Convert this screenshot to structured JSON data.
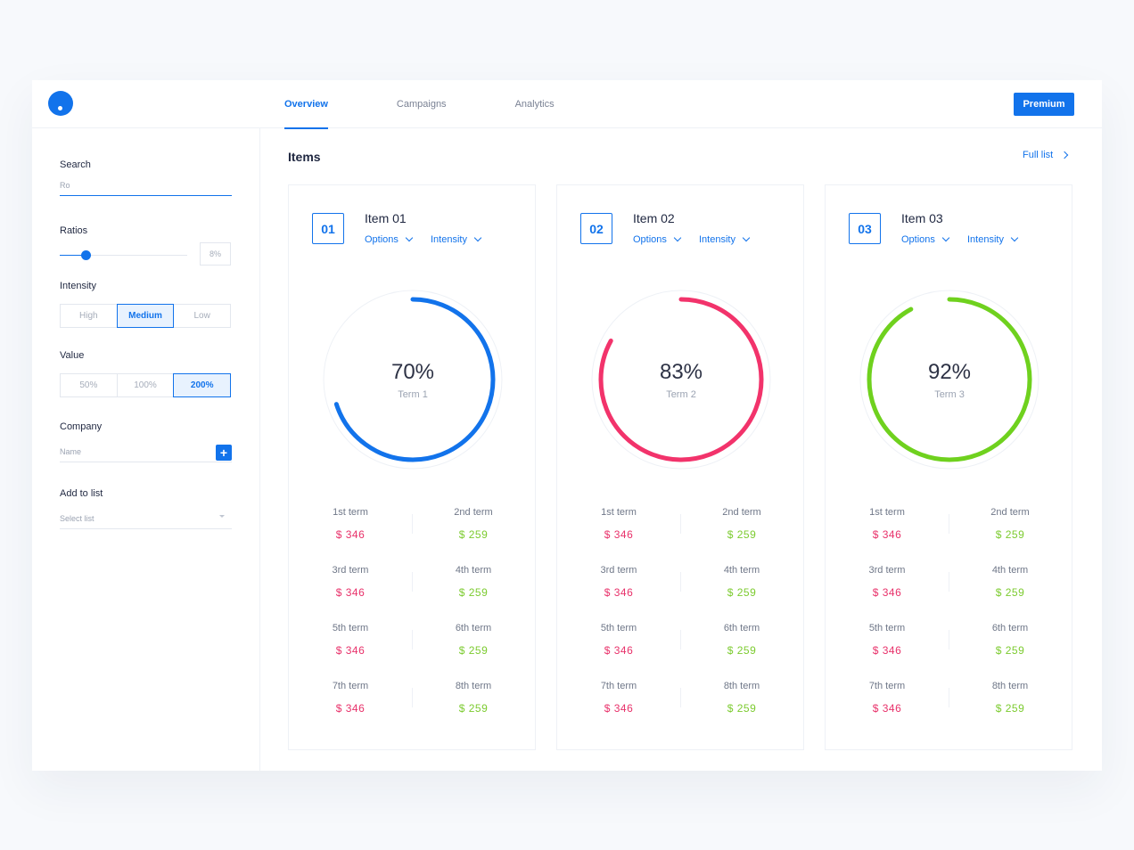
{
  "nav": {
    "tabs": [
      {
        "label": "Overview",
        "active": true
      },
      {
        "label": "Campaigns",
        "active": false
      },
      {
        "label": "Analytics",
        "active": false
      }
    ],
    "premium_label": "Premium"
  },
  "sidebar": {
    "search": {
      "label": "Search",
      "value": "Ro"
    },
    "ratios": {
      "label": "Ratios",
      "value": "8%",
      "slider_fraction": 0.2
    },
    "intensity": {
      "label": "Intensity",
      "options": [
        "High",
        "Medium",
        "Low"
      ],
      "selected": "Medium"
    },
    "value": {
      "label": "Value",
      "options": [
        "50%",
        "100%",
        "200%"
      ],
      "selected": "200%"
    },
    "company": {
      "label": "Company",
      "placeholder": "Name",
      "add_symbol": "+"
    },
    "add_to_list": {
      "label": "Add to list",
      "placeholder": "Select list"
    }
  },
  "main": {
    "title": "Items",
    "full_list_label": "Full list",
    "cards": [
      {
        "number": "01",
        "title": "Item 01",
        "options_label": "Options",
        "intensity_label": "Intensity",
        "percent_text": "70%",
        "percent": 70,
        "term_label": "Term 1",
        "color": "#1273eb",
        "terms": [
          {
            "left": {
              "label": "1st term",
              "value": "$ 346"
            },
            "right": {
              "label": "2nd term",
              "value": "$ 259"
            }
          },
          {
            "left": {
              "label": "3rd term",
              "value": "$ 346"
            },
            "right": {
              "label": "4th term",
              "value": "$ 259"
            }
          },
          {
            "left": {
              "label": "5th term",
              "value": "$ 346"
            },
            "right": {
              "label": "6th term",
              "value": "$ 259"
            }
          },
          {
            "left": {
              "label": "7th term",
              "value": "$ 346"
            },
            "right": {
              "label": "8th term",
              "value": "$ 259"
            }
          }
        ]
      },
      {
        "number": "02",
        "title": "Item 02",
        "options_label": "Options",
        "intensity_label": "Intensity",
        "percent_text": "83%",
        "percent": 83,
        "term_label": "Term 2",
        "color": "#f2336b",
        "terms": [
          {
            "left": {
              "label": "1st term",
              "value": "$ 346"
            },
            "right": {
              "label": "2nd term",
              "value": "$ 259"
            }
          },
          {
            "left": {
              "label": "3rd term",
              "value": "$ 346"
            },
            "right": {
              "label": "4th term",
              "value": "$ 259"
            }
          },
          {
            "left": {
              "label": "5th term",
              "value": "$ 346"
            },
            "right": {
              "label": "6th term",
              "value": "$ 259"
            }
          },
          {
            "left": {
              "label": "7th term",
              "value": "$ 346"
            },
            "right": {
              "label": "8th term",
              "value": "$ 259"
            }
          }
        ]
      },
      {
        "number": "03",
        "title": "Item 03",
        "options_label": "Options",
        "intensity_label": "Intensity",
        "percent_text": "92%",
        "percent": 92,
        "term_label": "Term 3",
        "color": "#6fd11e",
        "terms": [
          {
            "left": {
              "label": "1st term",
              "value": "$ 346"
            },
            "right": {
              "label": "2nd term",
              "value": "$ 259"
            }
          },
          {
            "left": {
              "label": "3rd term",
              "value": "$ 346"
            },
            "right": {
              "label": "4th term",
              "value": "$ 259"
            }
          },
          {
            "left": {
              "label": "5th term",
              "value": "$ 346"
            },
            "right": {
              "label": "6th term",
              "value": "$ 259"
            }
          },
          {
            "left": {
              "label": "7th term",
              "value": "$ 346"
            },
            "right": {
              "label": "8th term",
              "value": "$ 259"
            }
          }
        ]
      }
    ]
  },
  "colors": {
    "accent": "#1273eb",
    "value_negative": "#e8316a",
    "value_positive": "#7ccb2f"
  }
}
